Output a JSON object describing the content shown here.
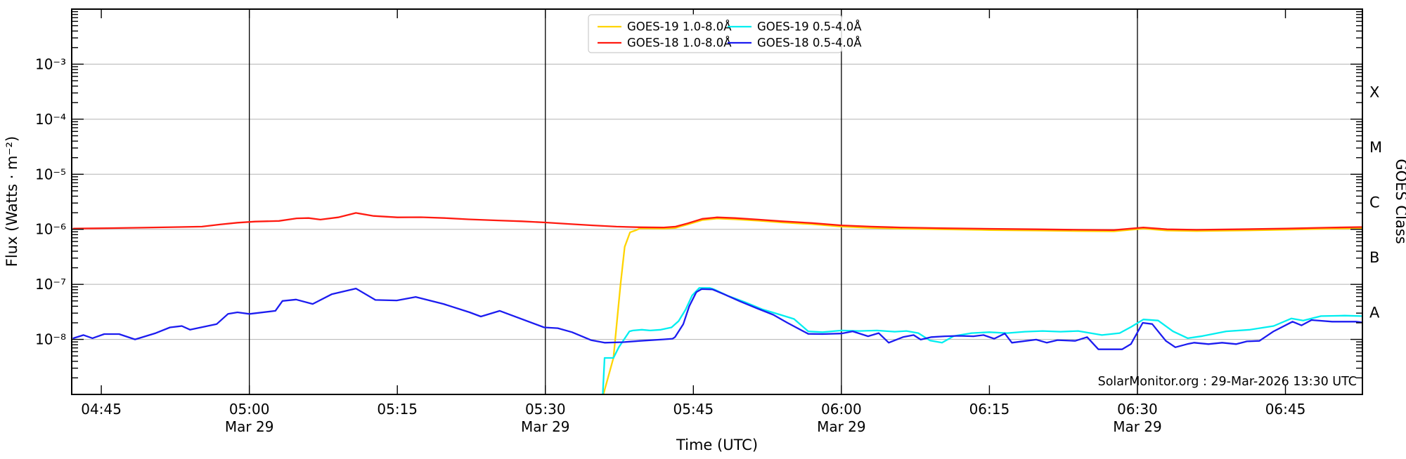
{
  "attribution": "SolarMonitor.org : 29-Mar-2026 13:30 UTC",
  "chart_data": {
    "type": "line",
    "title": "",
    "xlabel": "Time (UTC)",
    "ylabel": "Flux (Watts · m⁻²)",
    "right_axis_label": "GOES Class",
    "y_log_range": [
      -9,
      -2
    ],
    "y_decade_labels": [
      {
        "log": -3,
        "label": "10⁻³"
      },
      {
        "log": -4,
        "label": "10⁻⁴"
      },
      {
        "log": -5,
        "label": "10⁻⁵"
      },
      {
        "log": -6,
        "label": "10⁻⁶"
      },
      {
        "log": -7,
        "label": "10⁻⁷"
      },
      {
        "log": -8,
        "label": "10⁻⁸"
      }
    ],
    "goes_classes": [
      {
        "letter": "X",
        "log_mid": -3.5
      },
      {
        "letter": "M",
        "log_mid": -4.5
      },
      {
        "letter": "C",
        "log_mid": -5.5
      },
      {
        "letter": "B",
        "log_mid": -6.5
      },
      {
        "letter": "A",
        "log_mid": -7.5
      }
    ],
    "x_domain_hours": [
      4.7,
      6.88
    ],
    "x_ticks": [
      {
        "h": 4.75,
        "label": "04:45",
        "date": ""
      },
      {
        "h": 5.0,
        "label": "05:00",
        "date": "Mar 29"
      },
      {
        "h": 5.25,
        "label": "05:15",
        "date": ""
      },
      {
        "h": 5.5,
        "label": "05:30",
        "date": "Mar 29"
      },
      {
        "h": 5.75,
        "label": "05:45",
        "date": ""
      },
      {
        "h": 6.0,
        "label": "06:00",
        "date": "Mar 29"
      },
      {
        "h": 6.25,
        "label": "06:15",
        "date": ""
      },
      {
        "h": 6.5,
        "label": "06:30",
        "date": "Mar 29"
      },
      {
        "h": 6.75,
        "label": "06:45",
        "date": ""
      }
    ],
    "vlines_hours": [
      5.0,
      5.5,
      6.0,
      6.5
    ],
    "grid_color": "#b3b3b3",
    "legend": {
      "columns": 2,
      "order": [
        "GOES-19 1.0-8.0Å",
        "GOES-18 1.0-8.0Å",
        "GOES-19 0.5-4.0Å",
        "GOES-18 0.5-4.0Å"
      ]
    },
    "series": [
      {
        "name": "GOES-19 1.0-8.0Å",
        "color": "#ffd400",
        "points": [
          [
            5.598,
            1e-09
          ],
          [
            5.615,
            4.6e-09
          ],
          [
            5.627,
            1e-07
          ],
          [
            5.634,
            4.8e-07
          ],
          [
            5.643,
            8.8e-07
          ],
          [
            5.653,
            9.6e-07
          ],
          [
            5.66,
            1.04e-06
          ],
          [
            5.7,
            1.03e-06
          ],
          [
            5.72,
            1.06e-06
          ],
          [
            5.74,
            1.22e-06
          ],
          [
            5.765,
            1.47e-06
          ],
          [
            5.79,
            1.57e-06
          ],
          [
            5.82,
            1.52e-06
          ],
          [
            5.86,
            1.43e-06
          ],
          [
            5.9,
            1.33e-06
          ],
          [
            5.95,
            1.24e-06
          ],
          [
            6.0,
            1.12e-06
          ],
          [
            6.05,
            1.06e-06
          ],
          [
            6.1,
            1.03e-06
          ],
          [
            6.17,
            1e-06
          ],
          [
            6.25,
            9.7e-07
          ],
          [
            6.33,
            9.5e-07
          ],
          [
            6.4,
            9.3e-07
          ],
          [
            6.46,
            9.2e-07
          ],
          [
            6.51,
            1.03e-06
          ],
          [
            6.55,
            9.5e-07
          ],
          [
            6.6,
            9.3e-07
          ],
          [
            6.67,
            9.5e-07
          ],
          [
            6.75,
            9.8e-07
          ],
          [
            6.82,
            1.02e-06
          ],
          [
            6.878,
            1.05e-06
          ]
        ]
      },
      {
        "name": "GOES-18 1.0-8.0Å",
        "color": "#ff1a10",
        "points": [
          [
            4.703,
            1.03e-06
          ],
          [
            4.76,
            1.05e-06
          ],
          [
            4.82,
            1.07e-06
          ],
          [
            4.88,
            1.1e-06
          ],
          [
            4.92,
            1.12e-06
          ],
          [
            4.95,
            1.22e-06
          ],
          [
            4.98,
            1.32e-06
          ],
          [
            5.01,
            1.38e-06
          ],
          [
            5.05,
            1.42e-06
          ],
          [
            5.08,
            1.58e-06
          ],
          [
            5.1,
            1.6e-06
          ],
          [
            5.12,
            1.5e-06
          ],
          [
            5.15,
            1.65e-06
          ],
          [
            5.18,
            1.98e-06
          ],
          [
            5.21,
            1.75e-06
          ],
          [
            5.25,
            1.65e-06
          ],
          [
            5.29,
            1.66e-06
          ],
          [
            5.33,
            1.6e-06
          ],
          [
            5.37,
            1.52e-06
          ],
          [
            5.42,
            1.45e-06
          ],
          [
            5.46,
            1.4e-06
          ],
          [
            5.5,
            1.33e-06
          ],
          [
            5.54,
            1.25e-06
          ],
          [
            5.58,
            1.18e-06
          ],
          [
            5.62,
            1.12e-06
          ],
          [
            5.66,
            1.09e-06
          ],
          [
            5.7,
            1.08e-06
          ],
          [
            5.72,
            1.12e-06
          ],
          [
            5.74,
            1.28e-06
          ],
          [
            5.765,
            1.55e-06
          ],
          [
            5.79,
            1.65e-06
          ],
          [
            5.82,
            1.6e-06
          ],
          [
            5.86,
            1.5e-06
          ],
          [
            5.9,
            1.4e-06
          ],
          [
            5.95,
            1.3e-06
          ],
          [
            6.0,
            1.18e-06
          ],
          [
            6.05,
            1.12e-06
          ],
          [
            6.1,
            1.08e-06
          ],
          [
            6.17,
            1.05e-06
          ],
          [
            6.25,
            1.02e-06
          ],
          [
            6.33,
            1e-06
          ],
          [
            6.4,
            9.8e-07
          ],
          [
            6.46,
            9.7e-07
          ],
          [
            6.51,
            1.08e-06
          ],
          [
            6.55,
            1e-06
          ],
          [
            6.6,
            9.8e-07
          ],
          [
            6.67,
            1e-06
          ],
          [
            6.75,
            1.03e-06
          ],
          [
            6.82,
            1.07e-06
          ],
          [
            6.878,
            1.1e-06
          ]
        ]
      },
      {
        "name": "GOES-19 0.5-4.0Å",
        "color": "#00eef0",
        "points": [
          [
            5.597,
            1.05e-09
          ],
          [
            5.6,
            4.6e-09
          ],
          [
            5.615,
            4.6e-09
          ],
          [
            5.624,
            7.2e-09
          ],
          [
            5.642,
            1.4e-08
          ],
          [
            5.648,
            1.45e-08
          ],
          [
            5.663,
            1.5e-08
          ],
          [
            5.677,
            1.45e-08
          ],
          [
            5.695,
            1.5e-08
          ],
          [
            5.713,
            1.65e-08
          ],
          [
            5.725,
            2.15e-08
          ],
          [
            5.737,
            3.5e-08
          ],
          [
            5.748,
            6.3e-08
          ],
          [
            5.76,
            8.6e-08
          ],
          [
            5.778,
            8.6e-08
          ],
          [
            5.785,
            8.1e-08
          ],
          [
            5.808,
            6.2e-08
          ],
          [
            5.837,
            4.75e-08
          ],
          [
            5.867,
            3.5e-08
          ],
          [
            5.897,
            2.8e-08
          ],
          [
            5.92,
            2.35e-08
          ],
          [
            5.944,
            1.4e-08
          ],
          [
            5.968,
            1.35e-08
          ],
          [
            6.0,
            1.45e-08
          ],
          [
            6.03,
            1.42e-08
          ],
          [
            6.06,
            1.45e-08
          ],
          [
            6.09,
            1.38e-08
          ],
          [
            6.11,
            1.42e-08
          ],
          [
            6.13,
            1.3e-08
          ],
          [
            6.15,
            9.5e-09
          ],
          [
            6.17,
            8.7e-09
          ],
          [
            6.19,
            1.15e-08
          ],
          [
            6.22,
            1.3e-08
          ],
          [
            6.25,
            1.35e-08
          ],
          [
            6.28,
            1.3e-08
          ],
          [
            6.31,
            1.38e-08
          ],
          [
            6.34,
            1.42e-08
          ],
          [
            6.37,
            1.38e-08
          ],
          [
            6.4,
            1.42e-08
          ],
          [
            6.44,
            1.2e-08
          ],
          [
            6.47,
            1.3e-08
          ],
          [
            6.49,
            1.7e-08
          ],
          [
            6.51,
            2.3e-08
          ],
          [
            6.535,
            2.2e-08
          ],
          [
            6.56,
            1.4e-08
          ],
          [
            6.585,
            1.05e-08
          ],
          [
            6.61,
            1.15e-08
          ],
          [
            6.65,
            1.4e-08
          ],
          [
            6.69,
            1.5e-08
          ],
          [
            6.73,
            1.75e-08
          ],
          [
            6.76,
            2.4e-08
          ],
          [
            6.78,
            2.2e-08
          ],
          [
            6.81,
            2.65e-08
          ],
          [
            6.85,
            2.7e-08
          ],
          [
            6.878,
            2.65e-08
          ]
        ]
      },
      {
        "name": "GOES-18 0.5-4.0Å",
        "color": "#1c1cf0",
        "points": [
          [
            4.703,
            1.05e-08
          ],
          [
            4.72,
            1.2e-08
          ],
          [
            4.735,
            1.05e-08
          ],
          [
            4.755,
            1.25e-08
          ],
          [
            4.78,
            1.25e-08
          ],
          [
            4.807,
            1e-08
          ],
          [
            4.842,
            1.3e-08
          ],
          [
            4.866,
            1.65e-08
          ],
          [
            4.886,
            1.75e-08
          ],
          [
            4.9,
            1.5e-08
          ],
          [
            4.945,
            1.9e-08
          ],
          [
            4.964,
            2.9e-08
          ],
          [
            4.98,
            3.1e-08
          ],
          [
            5.0,
            2.9e-08
          ],
          [
            5.044,
            3.3e-08
          ],
          [
            5.056,
            5e-08
          ],
          [
            5.079,
            5.3e-08
          ],
          [
            5.107,
            4.4e-08
          ],
          [
            5.139,
            6.6e-08
          ],
          [
            5.18,
            8.4e-08
          ],
          [
            5.213,
            5.2e-08
          ],
          [
            5.249,
            5.1e-08
          ],
          [
            5.281,
            5.9e-08
          ],
          [
            5.328,
            4.4e-08
          ],
          [
            5.372,
            3.1e-08
          ],
          [
            5.391,
            2.6e-08
          ],
          [
            5.423,
            3.3e-08
          ],
          [
            5.498,
            1.65e-08
          ],
          [
            5.521,
            1.6e-08
          ],
          [
            5.545,
            1.35e-08
          ],
          [
            5.577,
            9.7e-09
          ],
          [
            5.6,
            8.7e-09
          ],
          [
            5.632,
            8.9e-09
          ],
          [
            5.66,
            9.4e-09
          ],
          [
            5.699,
            1e-08
          ],
          [
            5.715,
            1.03e-08
          ],
          [
            5.719,
            1.1e-08
          ],
          [
            5.733,
            1.9e-08
          ],
          [
            5.743,
            4e-08
          ],
          [
            5.755,
            7.2e-08
          ],
          [
            5.764,
            8.2e-08
          ],
          [
            5.782,
            8.1e-08
          ],
          [
            5.802,
            6.6e-08
          ],
          [
            5.829,
            4.9e-08
          ],
          [
            5.858,
            3.65e-08
          ],
          [
            5.885,
            2.8e-08
          ],
          [
            5.909,
            2e-08
          ],
          [
            5.944,
            1.26e-08
          ],
          [
            5.968,
            1.25e-08
          ],
          [
            6.0,
            1.28e-08
          ],
          [
            6.019,
            1.4e-08
          ],
          [
            6.045,
            1.14e-08
          ],
          [
            6.063,
            1.3e-08
          ],
          [
            6.08,
            8.7e-09
          ],
          [
            6.104,
            1.1e-08
          ],
          [
            6.122,
            1.2e-08
          ],
          [
            6.134,
            9.9e-09
          ],
          [
            6.152,
            1.1e-08
          ],
          [
            6.175,
            1.14e-08
          ],
          [
            6.199,
            1.16e-08
          ],
          [
            6.223,
            1.14e-08
          ],
          [
            6.24,
            1.2e-08
          ],
          [
            6.258,
            1.03e-08
          ],
          [
            6.276,
            1.28e-08
          ],
          [
            6.288,
            8.7e-09
          ],
          [
            6.312,
            9.4e-09
          ],
          [
            6.329,
            9.9e-09
          ],
          [
            6.347,
            8.7e-09
          ],
          [
            6.365,
            9.7e-09
          ],
          [
            6.395,
            9.4e-09
          ],
          [
            6.415,
            1.1e-08
          ],
          [
            6.434,
            6.6e-09
          ],
          [
            6.474,
            6.6e-09
          ],
          [
            6.489,
            8.2e-09
          ],
          [
            6.509,
            2e-08
          ],
          [
            6.525,
            1.9e-08
          ],
          [
            6.548,
            9.4e-09
          ],
          [
            6.564,
            7.2e-09
          ],
          [
            6.584,
            8.2e-09
          ],
          [
            6.596,
            8.7e-09
          ],
          [
            6.62,
            8.2e-09
          ],
          [
            6.643,
            8.7e-09
          ],
          [
            6.667,
            8.2e-09
          ],
          [
            6.685,
            9.2e-09
          ],
          [
            6.706,
            9.4e-09
          ],
          [
            6.73,
            1.4e-08
          ],
          [
            6.762,
            2.1e-08
          ],
          [
            6.777,
            1.8e-08
          ],
          [
            6.794,
            2.25e-08
          ],
          [
            6.829,
            2.1e-08
          ],
          [
            6.869,
            2.1e-08
          ],
          [
            6.878,
            2.05e-08
          ]
        ]
      }
    ]
  }
}
